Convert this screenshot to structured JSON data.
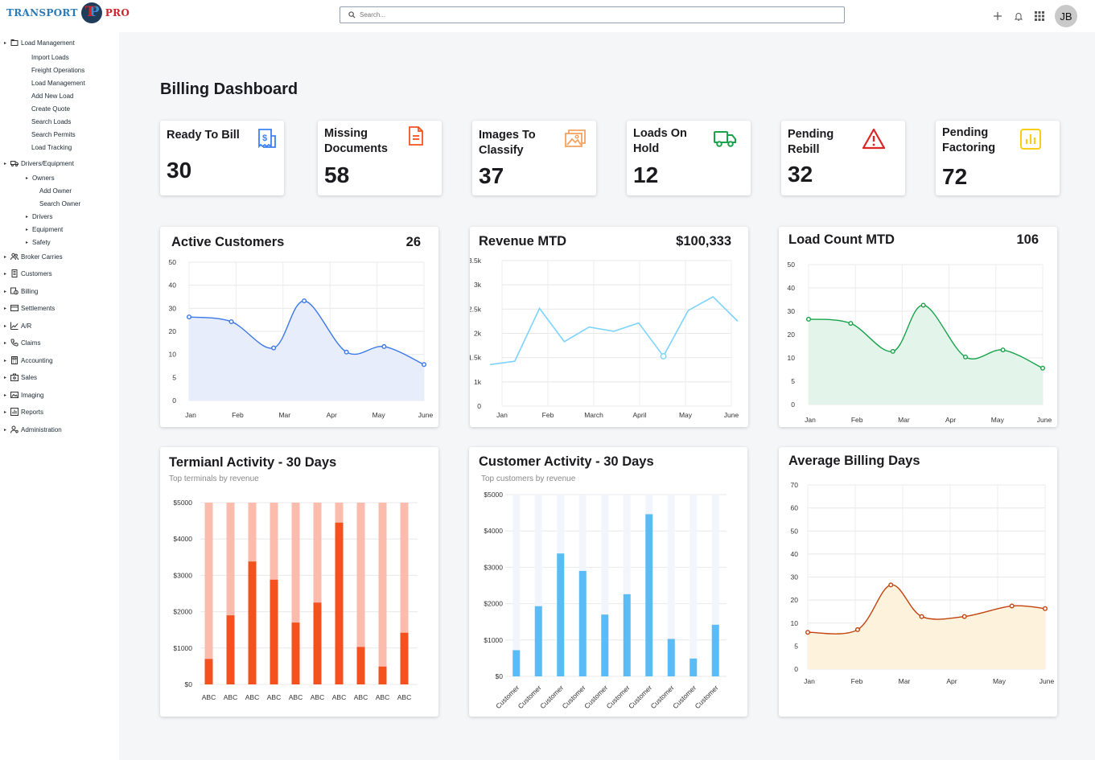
{
  "header": {
    "logo_left": "TRANSPORT",
    "logo_right": "PRO",
    "search_placeholder": "Search...",
    "avatar_initials": "JB"
  },
  "sidebar": {
    "items": [
      {
        "label": "Load Management",
        "icon": "folder-icon",
        "level": 0,
        "caret": true
      },
      {
        "label": "Import Loads",
        "level": 2
      },
      {
        "label": "Freight Operations",
        "level": 2
      },
      {
        "label": "Load Management",
        "level": 2
      },
      {
        "label": "Add New Load",
        "level": 2
      },
      {
        "label": "Create Quote",
        "level": 2
      },
      {
        "label": "Search Loads",
        "level": 2
      },
      {
        "label": "Search Permits",
        "level": 2
      },
      {
        "label": "Load Tracking",
        "level": 2
      },
      {
        "label": "Drivers/Equipment",
        "icon": "truck-icon",
        "level": 0,
        "caret": true
      },
      {
        "label": "Owners",
        "level": 1,
        "caret": true
      },
      {
        "label": "Add Owner",
        "level": 3
      },
      {
        "label": "Search Owner",
        "level": 3
      },
      {
        "label": "Drivers",
        "level": 1,
        "caret": true
      },
      {
        "label": "Equipment",
        "level": 1,
        "caret": true
      },
      {
        "label": "Safety",
        "level": 1,
        "caret": true
      },
      {
        "label": "Broker Carries",
        "icon": "users-icon",
        "level": 0,
        "caret": true
      },
      {
        "label": "Customers",
        "icon": "building-icon",
        "level": 0,
        "caret": true
      },
      {
        "label": "Billing",
        "icon": "billing-icon",
        "level": 0,
        "caret": true
      },
      {
        "label": "Settlements",
        "icon": "card-icon",
        "level": 0,
        "caret": true
      },
      {
        "label": "A/R",
        "icon": "trend-icon",
        "level": 0,
        "caret": true
      },
      {
        "label": "Claims",
        "icon": "phone-icon",
        "level": 0,
        "caret": true
      },
      {
        "label": "Accounting",
        "icon": "calculator-icon",
        "level": 0,
        "caret": true
      },
      {
        "label": "Sales",
        "icon": "sales-icon",
        "level": 0,
        "caret": true
      },
      {
        "label": "Imaging",
        "icon": "image-icon",
        "level": 0,
        "caret": true
      },
      {
        "label": "Reports",
        "icon": "report-icon",
        "level": 0,
        "caret": true
      },
      {
        "label": "Administration",
        "icon": "admin-icon",
        "level": 0,
        "caret": true
      }
    ]
  },
  "page": {
    "title": "Billing Dashboard"
  },
  "stats": [
    {
      "title": "Ready To Bill",
      "value": "30",
      "icon": "receipt-icon",
      "color": "#3b82f6"
    },
    {
      "title": "Missing Documents",
      "value": "58",
      "icon": "document-icon",
      "color": "#f4511e"
    },
    {
      "title": "Images To Classify",
      "value": "37",
      "icon": "images-icon",
      "color": "#f4a261"
    },
    {
      "title": "Loads On Hold",
      "value": "12",
      "icon": "truck-icon",
      "color": "#16a34a"
    },
    {
      "title": "Pending Rebill",
      "value": "32",
      "icon": "warning-icon",
      "color": "#dc2626"
    },
    {
      "title": "Pending Factoring",
      "value": "72",
      "icon": "bar-chart-icon",
      "color": "#facc15"
    }
  ],
  "panels": {
    "active_customers": {
      "title": "Active Customers",
      "metric": "26"
    },
    "revenue_mtd": {
      "title": "Revenue MTD",
      "metric": "$100,333"
    },
    "load_count_mtd": {
      "title": "Load Count MTD",
      "metric": "106"
    },
    "terminal_activity": {
      "title": "Termianl Activity - 30 Days",
      "subtitle": "Top terminals by revenue"
    },
    "customer_activity": {
      "title": "Customer Activity - 30 Days",
      "subtitle": "Top customers by revenue"
    },
    "avg_billing_days": {
      "title": "Average Billing Days"
    }
  },
  "chart_data": [
    {
      "id": "active_customers",
      "type": "area",
      "color": "#3b78e7",
      "fill": "#e8edfc",
      "x_labels": [
        "Jan",
        "Feb",
        "Mar",
        "Apr",
        "May",
        "June"
      ],
      "y_ticks": [
        "0",
        "5",
        "10",
        "20",
        "30",
        "40",
        "50"
      ],
      "ylim": [
        0,
        50
      ],
      "values": [
        30.2,
        28.5,
        19,
        36,
        17.5,
        19.5,
        13
      ],
      "point_x": [
        0,
        0.9,
        1.8,
        2.45,
        3.35,
        4.15,
        5
      ]
    },
    {
      "id": "revenue_mtd",
      "type": "line",
      "color": "#7dd3fc",
      "x_labels": [
        "Jan",
        "Feb",
        "March",
        "April",
        "May",
        "June"
      ],
      "y_ticks": [
        "0",
        "1k",
        "1.5k",
        "2k",
        "2.5k",
        "3k",
        "3.5k"
      ],
      "ylim": [
        0,
        3500
      ],
      "values": [
        1000,
        1080,
        2350,
        1550,
        1900,
        1800,
        2000,
        1200,
        2300,
        2630,
        2040
      ],
      "highlight_point": 7
    },
    {
      "id": "load_count_mtd",
      "type": "area",
      "color": "#16a34a",
      "fill": "#e3f5ea",
      "x_labels": [
        "Jan",
        "Feb",
        "Mar",
        "Apr",
        "May",
        "June"
      ],
      "y_ticks": [
        "0",
        "5",
        "10",
        "20",
        "30",
        "40",
        "50"
      ],
      "ylim": [
        0,
        50
      ],
      "values": [
        30.5,
        29,
        19,
        35.5,
        17,
        19.5,
        13
      ],
      "point_x": [
        0,
        0.9,
        1.8,
        2.45,
        3.35,
        4.15,
        5
      ]
    },
    {
      "id": "terminal_activity",
      "type": "bar",
      "color": "#f4511e",
      "bg_color": "#fbbcae",
      "categories": [
        "ABC",
        "ABC",
        "ABC",
        "ABC",
        "ABC",
        "ABC",
        "ABC",
        "ABC",
        "ABC",
        "ABC"
      ],
      "y_ticks": [
        "$0",
        "$1000",
        "$2000",
        "$3000",
        "$4000",
        "$5000"
      ],
      "ylim": [
        0,
        5000
      ],
      "values": [
        700,
        1900,
        3380,
        2880,
        1700,
        2250,
        4450,
        1030,
        490,
        1420
      ]
    },
    {
      "id": "customer_activity",
      "type": "bar",
      "color": "#5bbcf5",
      "bg_color": "#f2f5fc",
      "categories": [
        "Customer",
        "Customer",
        "Customer",
        "Customer",
        "Customer",
        "Customer",
        "Customer",
        "Customer",
        "Customer",
        "Customer"
      ],
      "y_ticks": [
        "$0",
        "$1000",
        "$2000",
        "$3000",
        "$4000",
        "$5000"
      ],
      "ylim": [
        0,
        5000
      ],
      "values": [
        720,
        1930,
        3380,
        2900,
        1700,
        2260,
        4460,
        1030,
        490,
        1420
      ]
    },
    {
      "id": "avg_billing_days",
      "type": "area",
      "color": "#c2410c",
      "fill": "#fdf3dd",
      "x_labels": [
        "Jan",
        "Feb",
        "Mar",
        "Apr",
        "May",
        "June"
      ],
      "y_ticks": [
        "0",
        "5",
        "10",
        "20",
        "30",
        "40",
        "50",
        "60",
        "70"
      ],
      "ylim": [
        0,
        70
      ],
      "values": [
        14,
        15,
        32,
        20,
        20,
        24,
        23
      ],
      "point_x": [
        0,
        1.05,
        1.75,
        2.4,
        3.3,
        4.3,
        5
      ]
    }
  ]
}
